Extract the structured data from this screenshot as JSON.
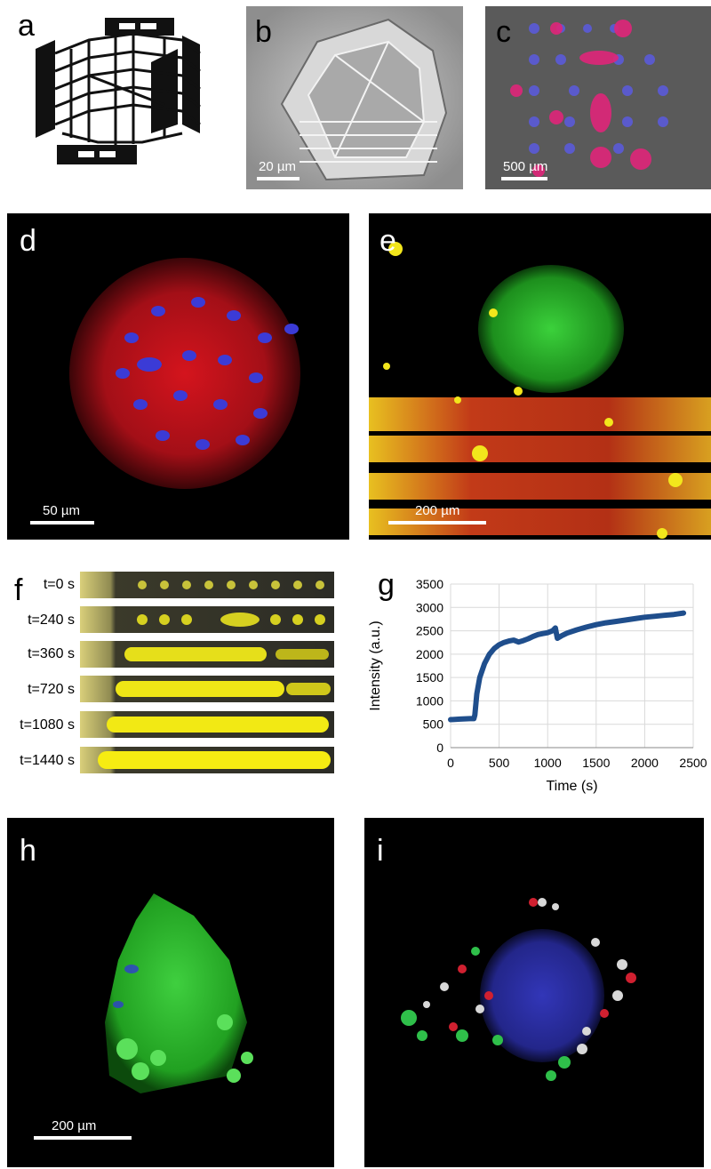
{
  "figure": {
    "panel_letters": [
      "a",
      "b",
      "c",
      "d",
      "e",
      "f",
      "g",
      "h",
      "i"
    ],
    "scale_bars": {
      "b": "20 µm",
      "c": "500 µm",
      "d": "50 µm",
      "e": "200 µm",
      "h": "200 µm"
    },
    "timelapse_labels": [
      "t=0 s",
      "t=240 s",
      "t=360 s",
      "t=720 s",
      "t=1080 s",
      "t=1440 s"
    ],
    "colors": {
      "series_line": "#1f4e8c",
      "fluorescence_red": "#e0202a",
      "fluorescence_green": "#3ccf3c",
      "fluorescence_blue": "#3a3ad8",
      "fluorescence_yellow": "#f4e81a"
    }
  },
  "chart_data": {
    "type": "line",
    "title": "",
    "xlabel": "Time (s)",
    "ylabel": "Intensity (a.u.)",
    "xlim": [
      0,
      2500
    ],
    "ylim": [
      0,
      3500
    ],
    "xticks": [
      0,
      500,
      1000,
      1500,
      2000,
      2500
    ],
    "yticks": [
      0,
      500,
      1000,
      1500,
      2000,
      2500,
      3000,
      3500
    ],
    "grid": true,
    "x": [
      0,
      100,
      200,
      240,
      250,
      270,
      300,
      350,
      400,
      450,
      500,
      550,
      600,
      650,
      700,
      750,
      800,
      850,
      900,
      950,
      1000,
      1050,
      1080,
      1100,
      1150,
      1200,
      1300,
      1400,
      1500,
      1600,
      1700,
      1800,
      1900,
      2000,
      2100,
      2200,
      2300,
      2400
    ],
    "series": [
      {
        "values": [
          600,
          610,
          620,
          620,
          700,
          1150,
          1500,
          1800,
          2000,
          2120,
          2200,
          2250,
          2280,
          2300,
          2260,
          2290,
          2330,
          2380,
          2420,
          2440,
          2460,
          2500,
          2560,
          2340,
          2400,
          2450,
          2520,
          2580,
          2630,
          2670,
          2700,
          2730,
          2760,
          2790,
          2810,
          2830,
          2850,
          2880
        ]
      }
    ]
  }
}
